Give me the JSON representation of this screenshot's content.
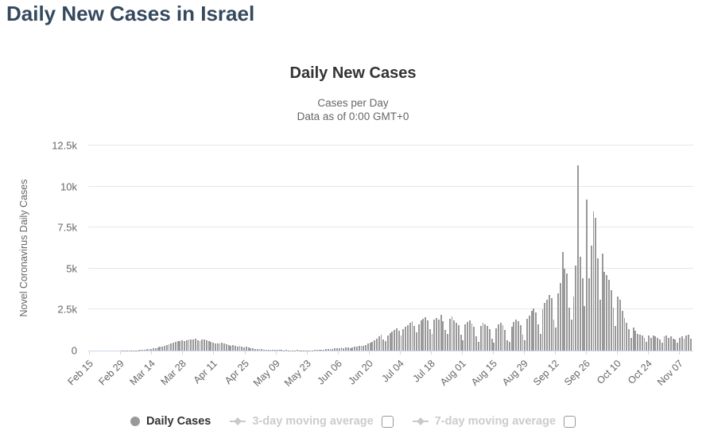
{
  "page": {
    "title": "Daily New Cases in Israel"
  },
  "chart": {
    "title": "Daily New Cases",
    "subtitle_line1": "Cases per Day",
    "subtitle_line2": "Data as of 0:00 GMT+0",
    "y_axis_title": "Novel Coronavirus Daily Cases"
  },
  "legend": {
    "items": [
      {
        "label": "Daily Cases",
        "marker": "circle-icon",
        "active": true,
        "has_checkbox": false
      },
      {
        "label": "3-day moving average",
        "marker": "diamond-line-icon",
        "active": false,
        "has_checkbox": true,
        "checkbox_checked": false
      },
      {
        "label": "7-day moving average",
        "marker": "diamond-line-icon",
        "active": false,
        "has_checkbox": true,
        "checkbox_checked": false
      }
    ]
  },
  "colors": {
    "bar": "#999999",
    "page_title": "#34495e",
    "chart_title": "#333333",
    "subtitle": "#666666",
    "axis_label": "#666666",
    "gridline": "#e7e7e7",
    "axis_line": "#ccd6eb",
    "legend_active_text": "#333333",
    "legend_muted_text": "#cccccc"
  },
  "chart_data": {
    "type": "bar",
    "title": "Daily New Cases",
    "series_name": "Daily Cases",
    "hidden_series": [
      "3-day moving average",
      "7-day moving average"
    ],
    "ylabel": "Novel Coronavirus Daily Cases",
    "ylim": [
      0,
      12500
    ],
    "y_tick_labels": [
      "0",
      "2.5k",
      "5k",
      "7.5k",
      "10k",
      "12.5k"
    ],
    "grid": true,
    "legend_position": "bottom",
    "x_start_label": "Feb 15",
    "x_tick_interval_days": 14,
    "x_tick_labels": [
      "Feb 15",
      "Feb 29",
      "Mar 14",
      "Mar 28",
      "Apr 11",
      "Apr 25",
      "May 09",
      "May 23",
      "Jun 06",
      "Jun 20",
      "Jul 04",
      "Jul 18",
      "Aug 01",
      "Aug 15",
      "Aug 29",
      "Sep 12",
      "Sep 26",
      "Oct 10",
      "Oct 24",
      "Nov 07"
    ],
    "values": [
      0,
      0,
      0,
      0,
      0,
      0,
      1,
      0,
      1,
      0,
      0,
      1,
      2,
      2,
      3,
      4,
      5,
      6,
      8,
      10,
      12,
      15,
      18,
      25,
      40,
      60,
      75,
      90,
      110,
      130,
      160,
      200,
      230,
      260,
      290,
      330,
      380,
      430,
      480,
      520,
      560,
      600,
      640,
      580,
      620,
      660,
      700,
      680,
      720,
      640,
      580,
      660,
      700,
      640,
      600,
      540,
      500,
      460,
      420,
      460,
      500,
      440,
      380,
      340,
      300,
      320,
      280,
      260,
      300,
      240,
      200,
      220,
      180,
      160,
      140,
      120,
      100,
      90,
      80,
      70,
      60,
      50,
      55,
      45,
      40,
      30,
      35,
      25,
      20,
      28,
      22,
      18,
      15,
      20,
      25,
      18,
      15,
      12,
      10,
      14,
      18,
      22,
      28,
      35,
      45,
      55,
      70,
      85,
      100,
      115,
      95,
      125,
      140,
      160,
      175,
      155,
      180,
      200,
      170,
      190,
      220,
      250,
      280,
      310,
      280,
      350,
      420,
      480,
      550,
      650,
      750,
      850,
      950,
      700,
      600,
      900,
      1050,
      1150,
      1250,
      1350,
      1200,
      900,
      1300,
      1450,
      1550,
      1700,
      1800,
      1500,
      1100,
      1600,
      1850,
      1950,
      2050,
      1850,
      1300,
      1000,
      1900,
      2000,
      1900,
      2200,
      1800,
      1250,
      1000,
      1950,
      2100,
      1850,
      1700,
      1550,
      950,
      650,
      1600,
      1750,
      1850,
      1650,
      1450,
      850,
      550,
      1500,
      1700,
      1600,
      1500,
      1300,
      750,
      500,
      1350,
      1600,
      1700,
      1550,
      1250,
      650,
      550,
      1450,
      1750,
      1900,
      1800,
      1550,
      950,
      650,
      1950,
      2150,
      2400,
      2550,
      2350,
      1600,
      1000,
      2500,
      2900,
      3100,
      3400,
      3200,
      1900,
      1400,
      3500,
      4100,
      6000,
      5000,
      4700,
      2600,
      1900,
      3300,
      5200,
      11300,
      5700,
      4400,
      2700,
      9200,
      4400,
      6400,
      8500,
      8100,
      5600,
      3100,
      5900,
      4800,
      4600,
      4300,
      3700,
      2600,
      1500,
      3300,
      3100,
      2400,
      2000,
      1700,
      1300,
      800,
      1400,
      1200,
      1000,
      950,
      900,
      800,
      550,
      900,
      800,
      900,
      850,
      800,
      700,
      500,
      850,
      900,
      800,
      850,
      750,
      700,
      500,
      800,
      850,
      750,
      900,
      950,
      750
    ]
  }
}
